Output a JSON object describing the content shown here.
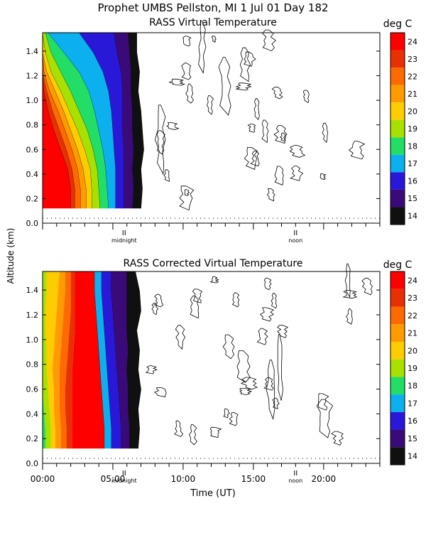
{
  "figure": {
    "title": "Prophet  UMBS Pellston, MI    1 Jul 01 Day 182",
    "shared_ylabel": "Altitude (km)",
    "xlabel": "Time (UT)"
  },
  "chart_data": [
    {
      "type": "heatmap",
      "title": "RASS Virtual Temperature",
      "colorbar_label": "deg C",
      "colorbar_ticks": [
        "24",
        "23",
        "22",
        "21",
        "20",
        "19",
        "18",
        "17",
        "16",
        "15",
        "14"
      ],
      "colorbar_colors": [
        "#ff0000",
        "#e83000",
        "#ff6a00",
        "#ff9a00",
        "#ffcc00",
        "#a8e000",
        "#22dd66",
        "#0cb0ee",
        "#2a18d8",
        "#3a0a78",
        "#101010"
      ],
      "ylim": [
        0,
        1.55
      ],
      "yticks": [
        "0.0",
        "0.2",
        "0.4",
        "0.6",
        "0.8",
        "1.0",
        "1.2",
        "1.4"
      ],
      "xlim": [
        0,
        24
      ],
      "xticklabels": [],
      "markers": [
        {
          "label": "midnight",
          "hour": 5.8
        },
        {
          "label": "noon",
          "hour": 18.0
        }
      ],
      "bands": [
        {
          "temp": 24,
          "t_end": [
            2.0,
            2.0,
            1.8,
            1.3,
            0.8,
            0.4,
            0.1,
            0,
            0,
            0
          ]
        },
        {
          "temp": 23,
          "t_end": [
            2.3,
            2.3,
            2.1,
            1.7,
            1.2,
            0.7,
            0.3,
            0,
            0,
            0
          ]
        },
        {
          "temp": 22,
          "t_end": [
            2.7,
            2.7,
            2.5,
            2.1,
            1.6,
            1.1,
            0.5,
            0.1,
            0,
            0
          ]
        },
        {
          "temp": 21,
          "t_end": [
            3.1,
            3.1,
            2.9,
            2.5,
            2.0,
            1.5,
            0.9,
            0.3,
            0,
            0
          ]
        },
        {
          "temp": 20,
          "t_end": [
            3.5,
            3.5,
            3.4,
            3.0,
            2.5,
            1.9,
            1.3,
            0.6,
            0.2,
            0
          ]
        },
        {
          "temp": 19,
          "t_end": [
            4.1,
            4.0,
            3.9,
            3.6,
            3.2,
            2.6,
            2.0,
            1.3,
            0.6,
            0.2
          ]
        },
        {
          "temp": 18,
          "t_end": [
            4.7,
            4.6,
            4.5,
            4.3,
            4.0,
            3.7,
            3.3,
            2.6,
            1.5,
            0.4
          ]
        },
        {
          "temp": 17,
          "t_end": [
            5.2,
            5.2,
            5.2,
            5.1,
            5.0,
            4.9,
            4.7,
            4.3,
            3.6,
            2.6
          ]
        },
        {
          "temp": 16,
          "t_end": [
            5.8,
            5.8,
            5.8,
            5.8,
            5.7,
            5.7,
            5.7,
            5.6,
            5.3,
            5.1
          ]
        },
        {
          "temp": 15,
          "t_end": [
            6.4,
            6.5,
            6.4,
            6.5,
            6.4,
            6.4,
            6.3,
            6.3,
            6.2,
            6.1
          ]
        },
        {
          "temp": 14,
          "t_end": [
            7.0,
            7.1,
            7.0,
            7.2,
            7.1,
            7.0,
            6.8,
            6.9,
            6.7,
            6.7
          ]
        }
      ]
    },
    {
      "type": "heatmap",
      "title": "RASS Corrected Virtual Temperature",
      "colorbar_label": "deg C",
      "colorbar_ticks": [
        "24",
        "23",
        "22",
        "21",
        "20",
        "19",
        "18",
        "17",
        "16",
        "15",
        "14"
      ],
      "colorbar_colors": [
        "#ff0000",
        "#e83000",
        "#ff6a00",
        "#ff9a00",
        "#ffcc00",
        "#a8e000",
        "#22dd66",
        "#0cb0ee",
        "#2a18d8",
        "#3a0a78",
        "#101010"
      ],
      "ylim": [
        0,
        1.55
      ],
      "yticks": [
        "0.0",
        "0.2",
        "0.4",
        "0.6",
        "0.8",
        "1.0",
        "1.2",
        "1.4"
      ],
      "xlim": [
        0,
        24
      ],
      "xticklabels": [
        "00:00",
        "05:00",
        "10:00",
        "15:00",
        "20:00"
      ],
      "xtick_hours": [
        0,
        5,
        10,
        15,
        20
      ],
      "markers": [
        {
          "label": "midnight",
          "hour": 5.8
        },
        {
          "label": "noon",
          "hour": 18.0
        }
      ],
      "left_bands": [
        {
          "temp": 18,
          "t_end": [
            0.2,
            0.2,
            0.1,
            0,
            0,
            0,
            0,
            0,
            0,
            0
          ]
        },
        {
          "temp": 19,
          "t_end": [
            0.6,
            0.6,
            0.5,
            0.4,
            0.3,
            0.3,
            0.2,
            0.2,
            0.3,
            0.3
          ]
        },
        {
          "temp": 20,
          "t_end": [
            0.9,
            0.9,
            0.8,
            0.8,
            0.7,
            0.8,
            0.9,
            1.0,
            1.1,
            1.2
          ]
        },
        {
          "temp": 21,
          "t_end": [
            1.3,
            1.3,
            1.2,
            1.2,
            1.2,
            1.3,
            1.4,
            1.5,
            1.6,
            1.6
          ]
        },
        {
          "temp": 22,
          "t_end": [
            1.7,
            1.7,
            1.6,
            1.6,
            1.7,
            1.8,
            1.9,
            2.0,
            2.0,
            2.0
          ]
        },
        {
          "temp": 23,
          "t_end": [
            2.1,
            2.1,
            2.1,
            2.1,
            2.1,
            2.2,
            2.3,
            2.3,
            2.3,
            2.3
          ]
        }
      ],
      "bands": [
        {
          "temp": 24,
          "t_end": [
            4.4,
            4.4,
            4.3,
            4.2,
            4.1,
            4.0,
            3.9,
            3.8,
            3.7,
            3.7
          ]
        },
        {
          "temp": 17,
          "t_end": [
            4.9,
            4.9,
            4.8,
            4.7,
            4.6,
            4.5,
            4.4,
            4.3,
            4.2,
            4.2
          ]
        },
        {
          "temp": 16,
          "t_end": [
            5.6,
            5.6,
            5.5,
            5.4,
            5.3,
            5.2,
            5.1,
            5.0,
            4.9,
            4.9
          ]
        },
        {
          "temp": 15,
          "t_end": [
            6.2,
            6.2,
            6.1,
            6.1,
            6.0,
            6.1,
            6.0,
            6.0,
            6.0,
            6.0
          ]
        },
        {
          "temp": 14,
          "t_end": [
            6.8,
            6.9,
            6.8,
            7.0,
            6.8,
            6.9,
            6.7,
            7.0,
            6.9,
            6.6
          ]
        }
      ]
    }
  ]
}
